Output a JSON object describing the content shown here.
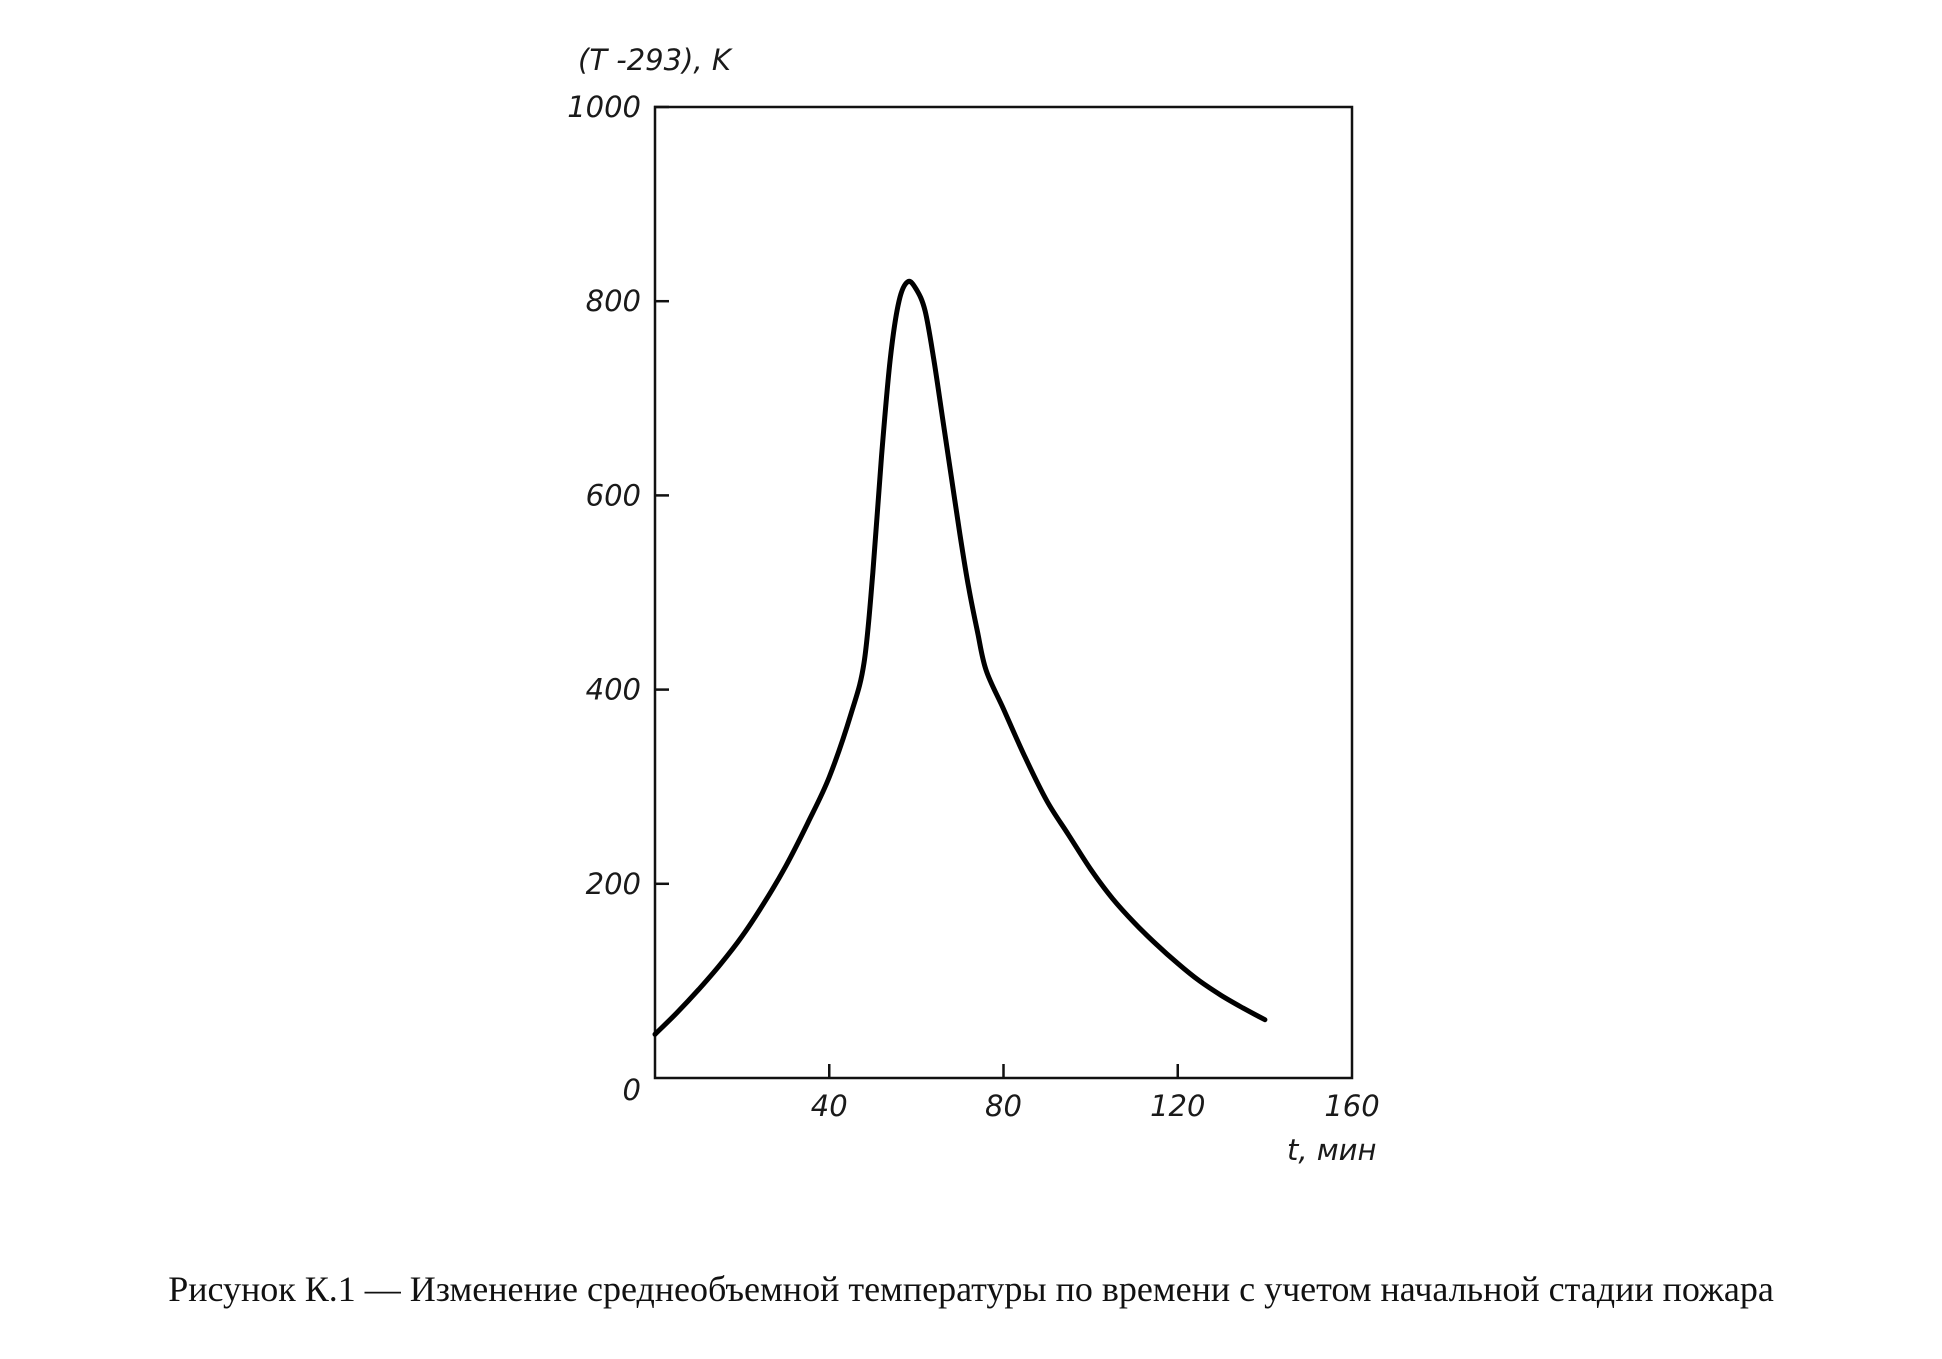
{
  "chart_data": {
    "type": "line",
    "title": "",
    "xlabel": "t, мин",
    "ylabel": "(T -293), K",
    "xlim": [
      0,
      160
    ],
    "ylim": [
      0,
      1000
    ],
    "x_ticks": [
      0,
      40,
      80,
      120,
      160
    ],
    "x_tick_labels": [
      "",
      "40",
      "80",
      "120",
      "160"
    ],
    "y_ticks": [
      0,
      200,
      400,
      600,
      800,
      1000
    ],
    "y_tick_labels": [
      "0",
      "200",
      "400",
      "600",
      "800",
      "1000"
    ],
    "grid": false,
    "series": [
      {
        "color": "#000000",
        "x": [
          0,
          5,
          10,
          15,
          20,
          25,
          30,
          35,
          40,
          45,
          48,
          50,
          52,
          54,
          56,
          58,
          60,
          62,
          64,
          66,
          68,
          70,
          72,
          74,
          76,
          80,
          85,
          90,
          95,
          100,
          105,
          110,
          115,
          120,
          125,
          130,
          135,
          140
        ],
        "y": [
          45,
          67,
          91,
          117,
          146,
          180,
          218,
          262,
          310,
          375,
          428,
          520,
          640,
          740,
          800,
          820,
          812,
          790,
          740,
          680,
          620,
          560,
          505,
          460,
          420,
          380,
          330,
          285,
          250,
          215,
          185,
          160,
          138,
          118,
          100,
          85,
          72,
          60
        ]
      }
    ]
  },
  "caption": "Рисунок К.1 — Изменение среднеобъемной температуры по времени с учетом начальной стадии пожара"
}
